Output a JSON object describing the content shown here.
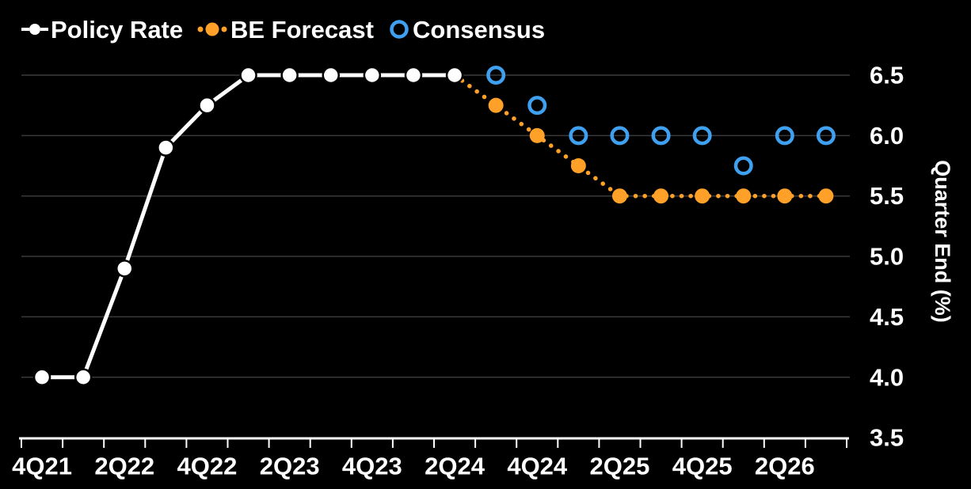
{
  "legend": [
    {
      "label": "Policy Rate",
      "marker": "dash-dot-dash",
      "color": "#ffffff"
    },
    {
      "label": "BE Forecast",
      "marker": "dot-dot-dot",
      "color": "#ffa028"
    },
    {
      "label": "Consensus",
      "marker": "open-circle",
      "color": "#3fa0f0"
    }
  ],
  "colors": {
    "background": "#000000",
    "grid": "#3a3a3a",
    "axis": "#ffffff",
    "policy_rate": "#ffffff",
    "be_forecast": "#ffa028",
    "consensus": "#3fa0f0",
    "text": "#ffffff"
  },
  "chart_data": {
    "type": "line",
    "title": "",
    "xlabel": "",
    "ylabel": "Quarter End (%)",
    "categories": [
      "4Q21",
      "1Q22",
      "2Q22",
      "3Q22",
      "4Q22",
      "1Q23",
      "2Q23",
      "3Q23",
      "4Q23",
      "1Q24",
      "2Q24",
      "3Q24",
      "4Q24",
      "1Q25",
      "2Q25",
      "3Q25",
      "4Q25",
      "1Q26",
      "2Q26",
      "3Q26"
    ],
    "x_axis_labels": [
      "4Q21",
      "2Q22",
      "4Q22",
      "2Q23",
      "4Q23",
      "2Q24",
      "4Q24",
      "2Q25",
      "4Q25",
      "2Q26"
    ],
    "x_label_every": 2,
    "y_ticks": [
      6.5,
      6.0,
      5.5,
      5.0,
      4.5,
      4.0,
      3.5
    ],
    "y_tick_labels": [
      "6.5",
      "6.0",
      "5.5",
      "5.0",
      "4.5",
      "4.0",
      "3.5"
    ],
    "ylim": [
      3.5,
      6.5
    ],
    "grid": "horizontal",
    "legend_position": "top-left",
    "y_axis_side": "right",
    "series": [
      {
        "name": "Policy Rate",
        "style": "solid-line-filled-markers",
        "color": "#ffffff",
        "values": [
          4.0,
          4.0,
          4.9,
          5.9,
          6.25,
          6.5,
          6.5,
          6.5,
          6.5,
          6.5,
          6.5,
          null,
          null,
          null,
          null,
          null,
          null,
          null,
          null,
          null
        ]
      },
      {
        "name": "BE Forecast",
        "style": "dotted-line-filled-markers",
        "color": "#ffa028",
        "suppress_first_marker": true,
        "values": [
          null,
          null,
          null,
          null,
          null,
          null,
          null,
          null,
          null,
          null,
          6.5,
          6.25,
          6.0,
          5.75,
          5.5,
          5.5,
          5.5,
          5.5,
          5.5,
          5.5
        ]
      },
      {
        "name": "Consensus",
        "style": "open-markers-only",
        "color": "#3fa0f0",
        "values": [
          null,
          null,
          null,
          null,
          null,
          null,
          null,
          null,
          null,
          null,
          null,
          6.5,
          6.25,
          6.0,
          6.0,
          6.0,
          6.0,
          5.75,
          6.0,
          6.0
        ]
      }
    ]
  }
}
